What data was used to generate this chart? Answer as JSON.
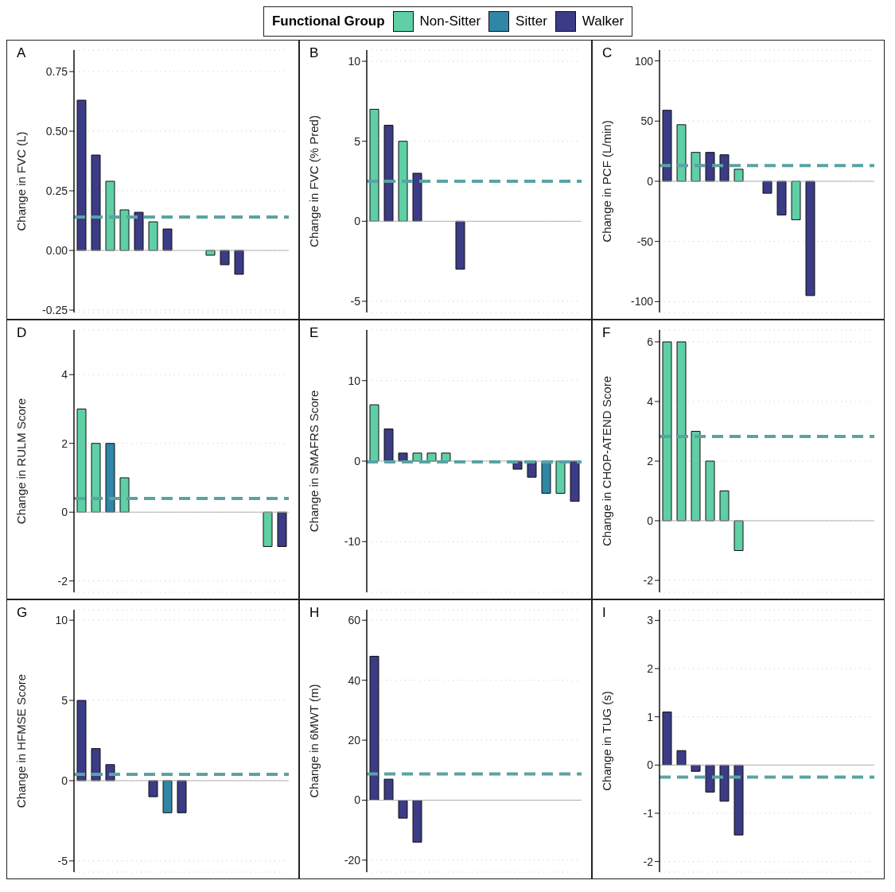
{
  "chart_data": [
    {
      "type": "bar",
      "title": "A",
      "ylabel": "Change in FVC (L)",
      "legend": "top",
      "legend_title": "Functional Group",
      "stacked": true,
      "grid": "y",
      "categories": [
        null,
        null,
        null,
        null,
        null,
        null,
        null,
        null,
        null,
        null,
        null,
        null,
        null,
        null,
        null
      ],
      "ylim": [
        -0.26,
        0.84
      ],
      "yticks": [
        {
          "value": -0.25,
          "label": "-0.25"
        },
        {
          "value": 0,
          "label": "0.00"
        },
        {
          "value": 0.25,
          "label": "0.25"
        },
        {
          "value": 0.5,
          "label": "0.50"
        },
        {
          "value": 0.75,
          "label": "0.75"
        }
      ],
      "series": [
        {
          "name": "Non-Sitter",
          "color": "#5fcfa5",
          "values": [
            null,
            null,
            0.29,
            0.17,
            null,
            0.12,
            null,
            null,
            null,
            -0.02,
            null,
            null,
            null,
            null,
            null
          ]
        },
        {
          "name": "Sitter",
          "color": "#2f86a6",
          "values": [
            null,
            null,
            null,
            null,
            null,
            null,
            null,
            null,
            null,
            null,
            null,
            null,
            null,
            null,
            null
          ]
        },
        {
          "name": "Walker",
          "color": "#3b3b86",
          "values": [
            0.63,
            0.4,
            null,
            null,
            0.16,
            null,
            0.09,
            0,
            0,
            null,
            -0.06,
            -0.1,
            null,
            null,
            null
          ]
        }
      ],
      "ref_lines": [
        {
          "axis": "y",
          "value": 0,
          "color": "#b0b0b0",
          "line_style": "solid"
        },
        {
          "axis": "y",
          "value": 0.14,
          "color": "#5aa3a3",
          "line_style": "dashed"
        }
      ]
    },
    {
      "type": "bar",
      "title": "B",
      "ylabel": "Change in FVC (% Pred)",
      "stacked": true,
      "grid": "y",
      "categories": [
        null,
        null,
        null,
        null,
        null,
        null,
        null,
        null,
        null,
        null,
        null,
        null,
        null,
        null,
        null
      ],
      "ylim": [
        -5.7,
        10.7
      ],
      "yticks": [
        -5,
        0,
        5,
        10
      ],
      "series": [
        {
          "color": "#5fcfa5",
          "values": [
            7,
            null,
            5,
            null,
            null,
            null,
            null,
            null,
            null,
            null,
            null,
            null,
            null,
            null,
            null
          ]
        },
        {
          "color": "#2f86a6",
          "values": [
            null,
            null,
            null,
            null,
            null,
            null,
            null,
            null,
            null,
            null,
            null,
            null,
            null,
            null,
            null
          ]
        },
        {
          "color": "#3b3b86",
          "values": [
            null,
            6,
            null,
            3,
            0,
            0,
            -3,
            null,
            null,
            null,
            null,
            null,
            null,
            null,
            null
          ]
        }
      ],
      "ref_lines": [
        {
          "axis": "y",
          "value": 0,
          "color": "#b0b0b0",
          "line_style": "solid"
        },
        {
          "axis": "y",
          "value": 2.5,
          "color": "#5aa3a3",
          "line_style": "dashed"
        }
      ]
    },
    {
      "type": "bar",
      "title": "C",
      "ylabel": "Change in PCF (L/min)",
      "stacked": true,
      "grid": "y",
      "categories": [
        null,
        null,
        null,
        null,
        null,
        null,
        null,
        null,
        null,
        null,
        null,
        null,
        null,
        null,
        null
      ],
      "ylim": [
        -109,
        109
      ],
      "yticks": [
        -100,
        -50,
        0,
        50,
        100
      ],
      "series": [
        {
          "color": "#5fcfa5",
          "values": [
            null,
            47,
            24,
            null,
            null,
            10,
            null,
            null,
            null,
            -32,
            null,
            null,
            null,
            null,
            null
          ]
        },
        {
          "color": "#2f86a6",
          "values": [
            null,
            null,
            null,
            null,
            null,
            null,
            null,
            null,
            null,
            null,
            null,
            null,
            null,
            null,
            null
          ]
        },
        {
          "color": "#3b3b86",
          "values": [
            59,
            null,
            null,
            24,
            22,
            null,
            0,
            -10,
            -28,
            null,
            -95,
            null,
            null,
            null,
            null
          ]
        }
      ],
      "ref_lines": [
        {
          "axis": "y",
          "value": 0,
          "color": "#b0b0b0",
          "line_style": "solid"
        },
        {
          "axis": "y",
          "value": 13,
          "color": "#5aa3a3",
          "line_style": "dashed"
        }
      ]
    },
    {
      "type": "bar",
      "title": "D",
      "ylabel": "Change in RULM Score",
      "stacked": true,
      "grid": "y",
      "categories": [
        null,
        null,
        null,
        null,
        null,
        null,
        null,
        null,
        null,
        null,
        null,
        null,
        null,
        null,
        null
      ],
      "ylim": [
        -2.33,
        5.3
      ],
      "yticks": [
        -2,
        0,
        2,
        4
      ],
      "series": [
        {
          "color": "#5fcfa5",
          "values": [
            3,
            2,
            null,
            1,
            null,
            null,
            null,
            null,
            null,
            null,
            null,
            null,
            null,
            -1,
            null
          ]
        },
        {
          "color": "#2f86a6",
          "values": [
            null,
            null,
            2,
            null,
            null,
            null,
            null,
            null,
            null,
            null,
            null,
            null,
            null,
            null,
            null
          ]
        },
        {
          "color": "#3b3b86",
          "values": [
            null,
            null,
            null,
            null,
            0,
            0,
            0,
            0,
            0,
            0,
            0,
            0,
            0,
            null,
            -1
          ]
        }
      ],
      "ref_lines": [
        {
          "axis": "y",
          "value": 0,
          "color": "#b0b0b0",
          "line_style": "solid"
        },
        {
          "axis": "y",
          "value": 0.4,
          "color": "#5aa3a3",
          "line_style": "dashed"
        }
      ]
    },
    {
      "type": "bar",
      "title": "E",
      "ylabel": "Change in SMAFRS Score",
      "stacked": true,
      "grid": "y",
      "categories": [
        null,
        null,
        null,
        null,
        null,
        null,
        null,
        null,
        null,
        null,
        null,
        null,
        null,
        null,
        null
      ],
      "ylim": [
        -16.3,
        16.3
      ],
      "yticks": [
        -10,
        0,
        10
      ],
      "series": [
        {
          "color": "#5fcfa5",
          "values": [
            7,
            null,
            null,
            1,
            1,
            1,
            null,
            null,
            null,
            null,
            null,
            null,
            null,
            -4,
            null
          ]
        },
        {
          "color": "#2f86a6",
          "values": [
            null,
            null,
            null,
            null,
            null,
            null,
            null,
            null,
            null,
            null,
            null,
            null,
            -4,
            null,
            null
          ]
        },
        {
          "color": "#3b3b86",
          "values": [
            null,
            4,
            1,
            null,
            null,
            null,
            0,
            0,
            0,
            0,
            -1,
            -2,
            null,
            null,
            -5
          ]
        }
      ],
      "ref_lines": [
        {
          "axis": "y",
          "value": 0,
          "color": "#b0b0b0",
          "line_style": "solid"
        },
        {
          "axis": "y",
          "value": -0.1,
          "color": "#5aa3a3",
          "line_style": "dashed"
        }
      ]
    },
    {
      "type": "bar",
      "title": "F",
      "ylabel": "Change in CHOP-ATEND Score",
      "stacked": true,
      "grid": "y",
      "categories": [
        null,
        null,
        null,
        null,
        null,
        null,
        null,
        null,
        null,
        null,
        null,
        null,
        null,
        null,
        null
      ],
      "ylim": [
        -2.4,
        6.4
      ],
      "yticks": [
        -2,
        0,
        2,
        4,
        6
      ],
      "series": [
        {
          "color": "#5fcfa5",
          "values": [
            6,
            6,
            3,
            2,
            1,
            -1,
            null,
            null,
            null,
            null,
            null,
            null,
            null,
            null,
            null
          ]
        },
        {
          "color": "#2f86a6",
          "values": [
            null,
            null,
            null,
            null,
            null,
            null,
            null,
            null,
            null,
            null,
            null,
            null,
            null,
            null,
            null
          ]
        },
        {
          "color": "#3b3b86",
          "values": [
            null,
            null,
            null,
            null,
            null,
            null,
            null,
            null,
            null,
            null,
            null,
            null,
            null,
            null,
            null
          ]
        }
      ],
      "ref_lines": [
        {
          "axis": "y",
          "value": 0,
          "color": "#b0b0b0",
          "line_style": "solid"
        },
        {
          "axis": "y",
          "value": 2.83,
          "color": "#5aa3a3",
          "line_style": "dashed"
        }
      ]
    },
    {
      "type": "bar",
      "title": "G",
      "ylabel": "Change in HFMSE Score",
      "stacked": true,
      "grid": "y",
      "categories": [
        null,
        null,
        null,
        null,
        null,
        null,
        null,
        null,
        null,
        null,
        null,
        null,
        null,
        null,
        null
      ],
      "ylim": [
        -5.7,
        10.65
      ],
      "yticks": [
        -5,
        0,
        5,
        10
      ],
      "series": [
        {
          "color": "#5fcfa5",
          "values": [
            null,
            null,
            null,
            null,
            null,
            null,
            null,
            null,
            null,
            null,
            null,
            null,
            null,
            null,
            null
          ]
        },
        {
          "color": "#2f86a6",
          "values": [
            null,
            null,
            null,
            null,
            null,
            null,
            -2,
            null,
            null,
            null,
            null,
            null,
            null,
            null,
            null
          ]
        },
        {
          "color": "#3b3b86",
          "values": [
            5,
            2,
            1,
            0,
            0,
            -1,
            null,
            -2,
            null,
            null,
            null,
            null,
            null,
            null,
            null
          ]
        }
      ],
      "ref_lines": [
        {
          "axis": "y",
          "value": 0,
          "color": "#b0b0b0",
          "line_style": "solid"
        },
        {
          "axis": "y",
          "value": 0.4,
          "color": "#5aa3a3",
          "line_style": "dashed"
        }
      ]
    },
    {
      "type": "bar",
      "title": "H",
      "ylabel": "Change in 6MWT (m)",
      "stacked": true,
      "grid": "y",
      "categories": [
        null,
        null,
        null,
        null,
        null,
        null,
        null,
        null,
        null,
        null,
        null,
        null,
        null,
        null,
        null
      ],
      "ylim": [
        -24,
        63.5
      ],
      "yticks": [
        -20,
        0,
        20,
        40,
        60
      ],
      "series": [
        {
          "color": "#5fcfa5",
          "values": [
            null,
            null,
            null,
            null,
            null,
            null,
            null,
            null,
            null,
            null,
            null,
            null,
            null,
            null,
            null
          ]
        },
        {
          "color": "#2f86a6",
          "values": [
            null,
            null,
            null,
            null,
            null,
            null,
            null,
            null,
            null,
            null,
            null,
            null,
            null,
            null,
            null
          ]
        },
        {
          "color": "#3b3b86",
          "values": [
            48,
            7,
            -6,
            -14,
            null,
            null,
            null,
            null,
            null,
            null,
            null,
            null,
            null,
            null,
            null
          ]
        }
      ],
      "ref_lines": [
        {
          "axis": "y",
          "value": 0,
          "color": "#b0b0b0",
          "line_style": "solid"
        },
        {
          "axis": "y",
          "value": 8.75,
          "color": "#5aa3a3",
          "line_style": "dashed"
        }
      ]
    },
    {
      "type": "bar",
      "title": "I",
      "ylabel": "Change in TUG (s)",
      "stacked": true,
      "grid": "y",
      "categories": [
        null,
        null,
        null,
        null,
        null,
        null,
        null,
        null,
        null,
        null,
        null,
        null,
        null,
        null,
        null
      ],
      "ylim": [
        -2.22,
        3.22
      ],
      "yticks": [
        -2,
        -1,
        0,
        1,
        2,
        3
      ],
      "series": [
        {
          "color": "#5fcfa5",
          "values": [
            null,
            null,
            null,
            null,
            null,
            null,
            null,
            null,
            null,
            null,
            null,
            null,
            null,
            null,
            null
          ]
        },
        {
          "color": "#2f86a6",
          "values": [
            null,
            null,
            null,
            null,
            null,
            null,
            null,
            null,
            null,
            null,
            null,
            null,
            null,
            null,
            null
          ]
        },
        {
          "color": "#3b3b86",
          "values": [
            1.1,
            0.3,
            -0.13,
            -0.56,
            -0.75,
            -1.45,
            null,
            null,
            null,
            null,
            null,
            null,
            null,
            null,
            null
          ]
        }
      ],
      "ref_lines": [
        {
          "axis": "y",
          "value": 0,
          "color": "#b0b0b0",
          "line_style": "solid"
        },
        {
          "axis": "y",
          "value": -0.25,
          "color": "#5aa3a3",
          "line_style": "dashed"
        }
      ]
    }
  ]
}
